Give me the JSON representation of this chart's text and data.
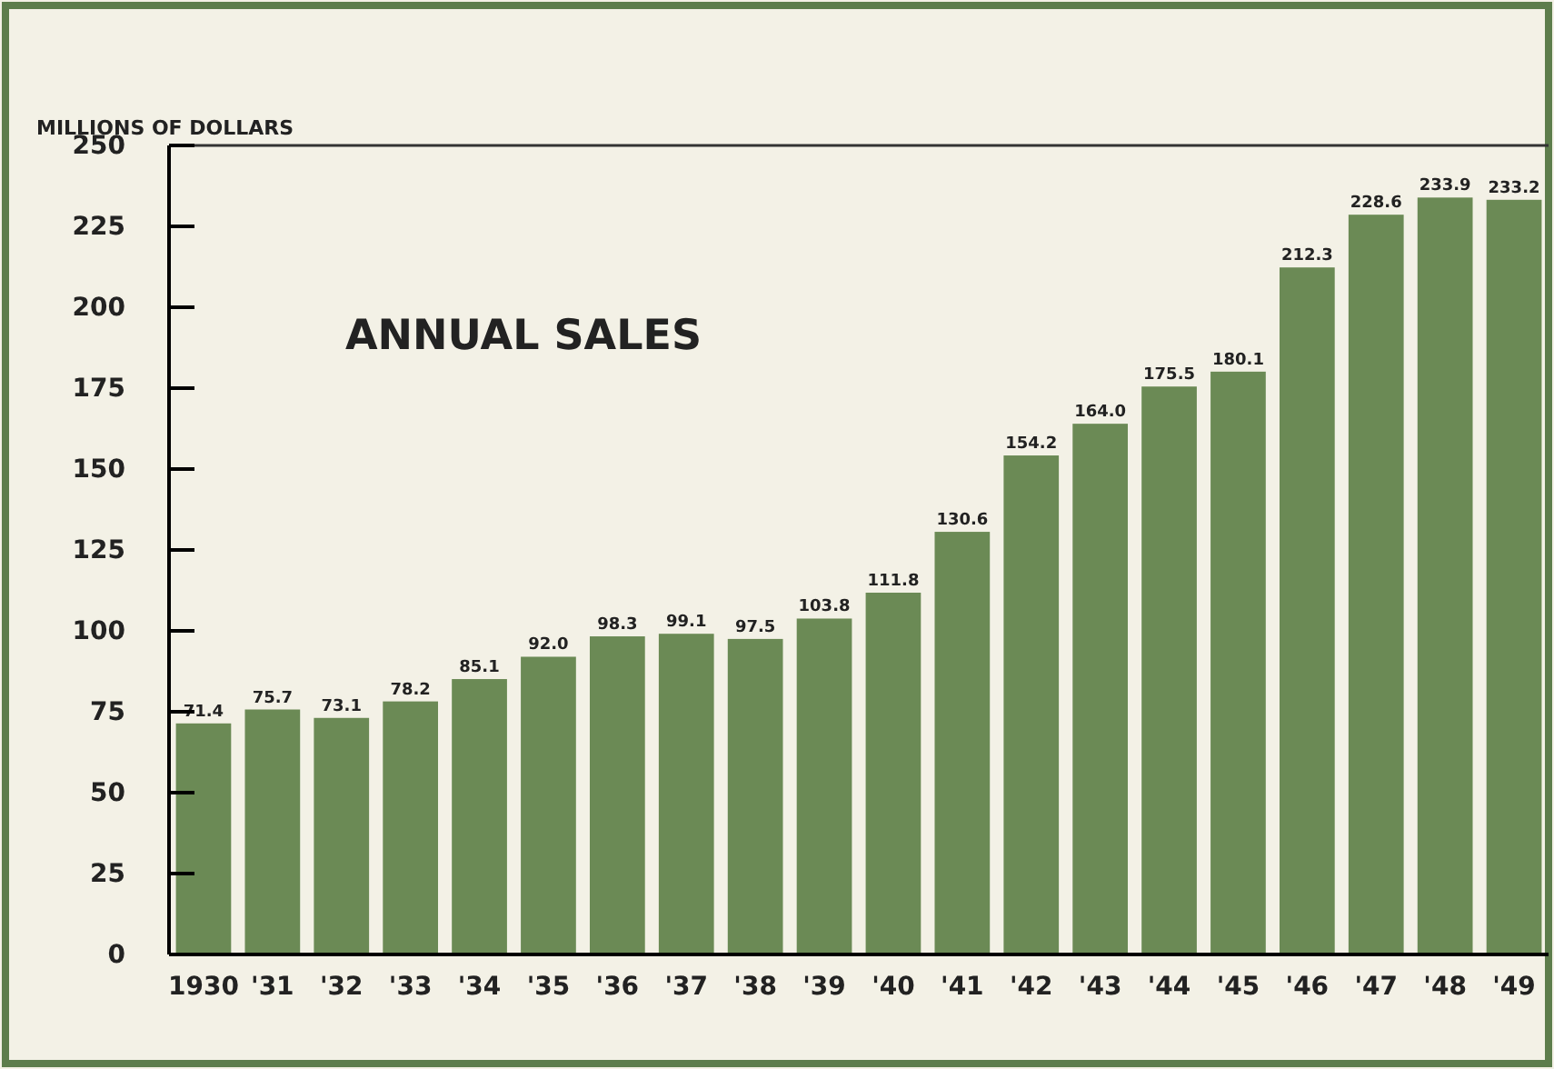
{
  "chart_data": {
    "type": "bar",
    "title": "ANNUAL SALES",
    "ylabel": "MILLIONS OF DOLLARS",
    "categories": [
      "1930",
      "'31",
      "'32",
      "'33",
      "'34",
      "'35",
      "'36",
      "'37",
      "'38",
      "'39",
      "'40",
      "'41",
      "'42",
      "'43",
      "'44",
      "'45",
      "'46",
      "'47",
      "'48",
      "'49"
    ],
    "values": [
      71.4,
      75.7,
      73.1,
      78.2,
      85.1,
      92.0,
      98.3,
      99.1,
      97.5,
      103.8,
      111.8,
      130.6,
      154.2,
      164.0,
      175.5,
      180.1,
      212.3,
      228.6,
      233.9,
      233.2
    ],
    "value_labels": [
      "71.4",
      "75.7",
      "73.1",
      "78.2",
      "85.1",
      "92.0",
      "98.3",
      "99.1",
      "97.5",
      "103.8",
      "111.8",
      "130.6",
      "154.2",
      "164.0",
      "175.5",
      "180.1",
      "212.3",
      "228.6",
      "233.9",
      "233.2"
    ],
    "color": "#6b8a55",
    "ylim": [
      0,
      250
    ],
    "yticks": [
      0,
      25,
      50,
      75,
      100,
      125,
      150,
      175,
      200,
      225,
      250
    ],
    "grid": false
  }
}
